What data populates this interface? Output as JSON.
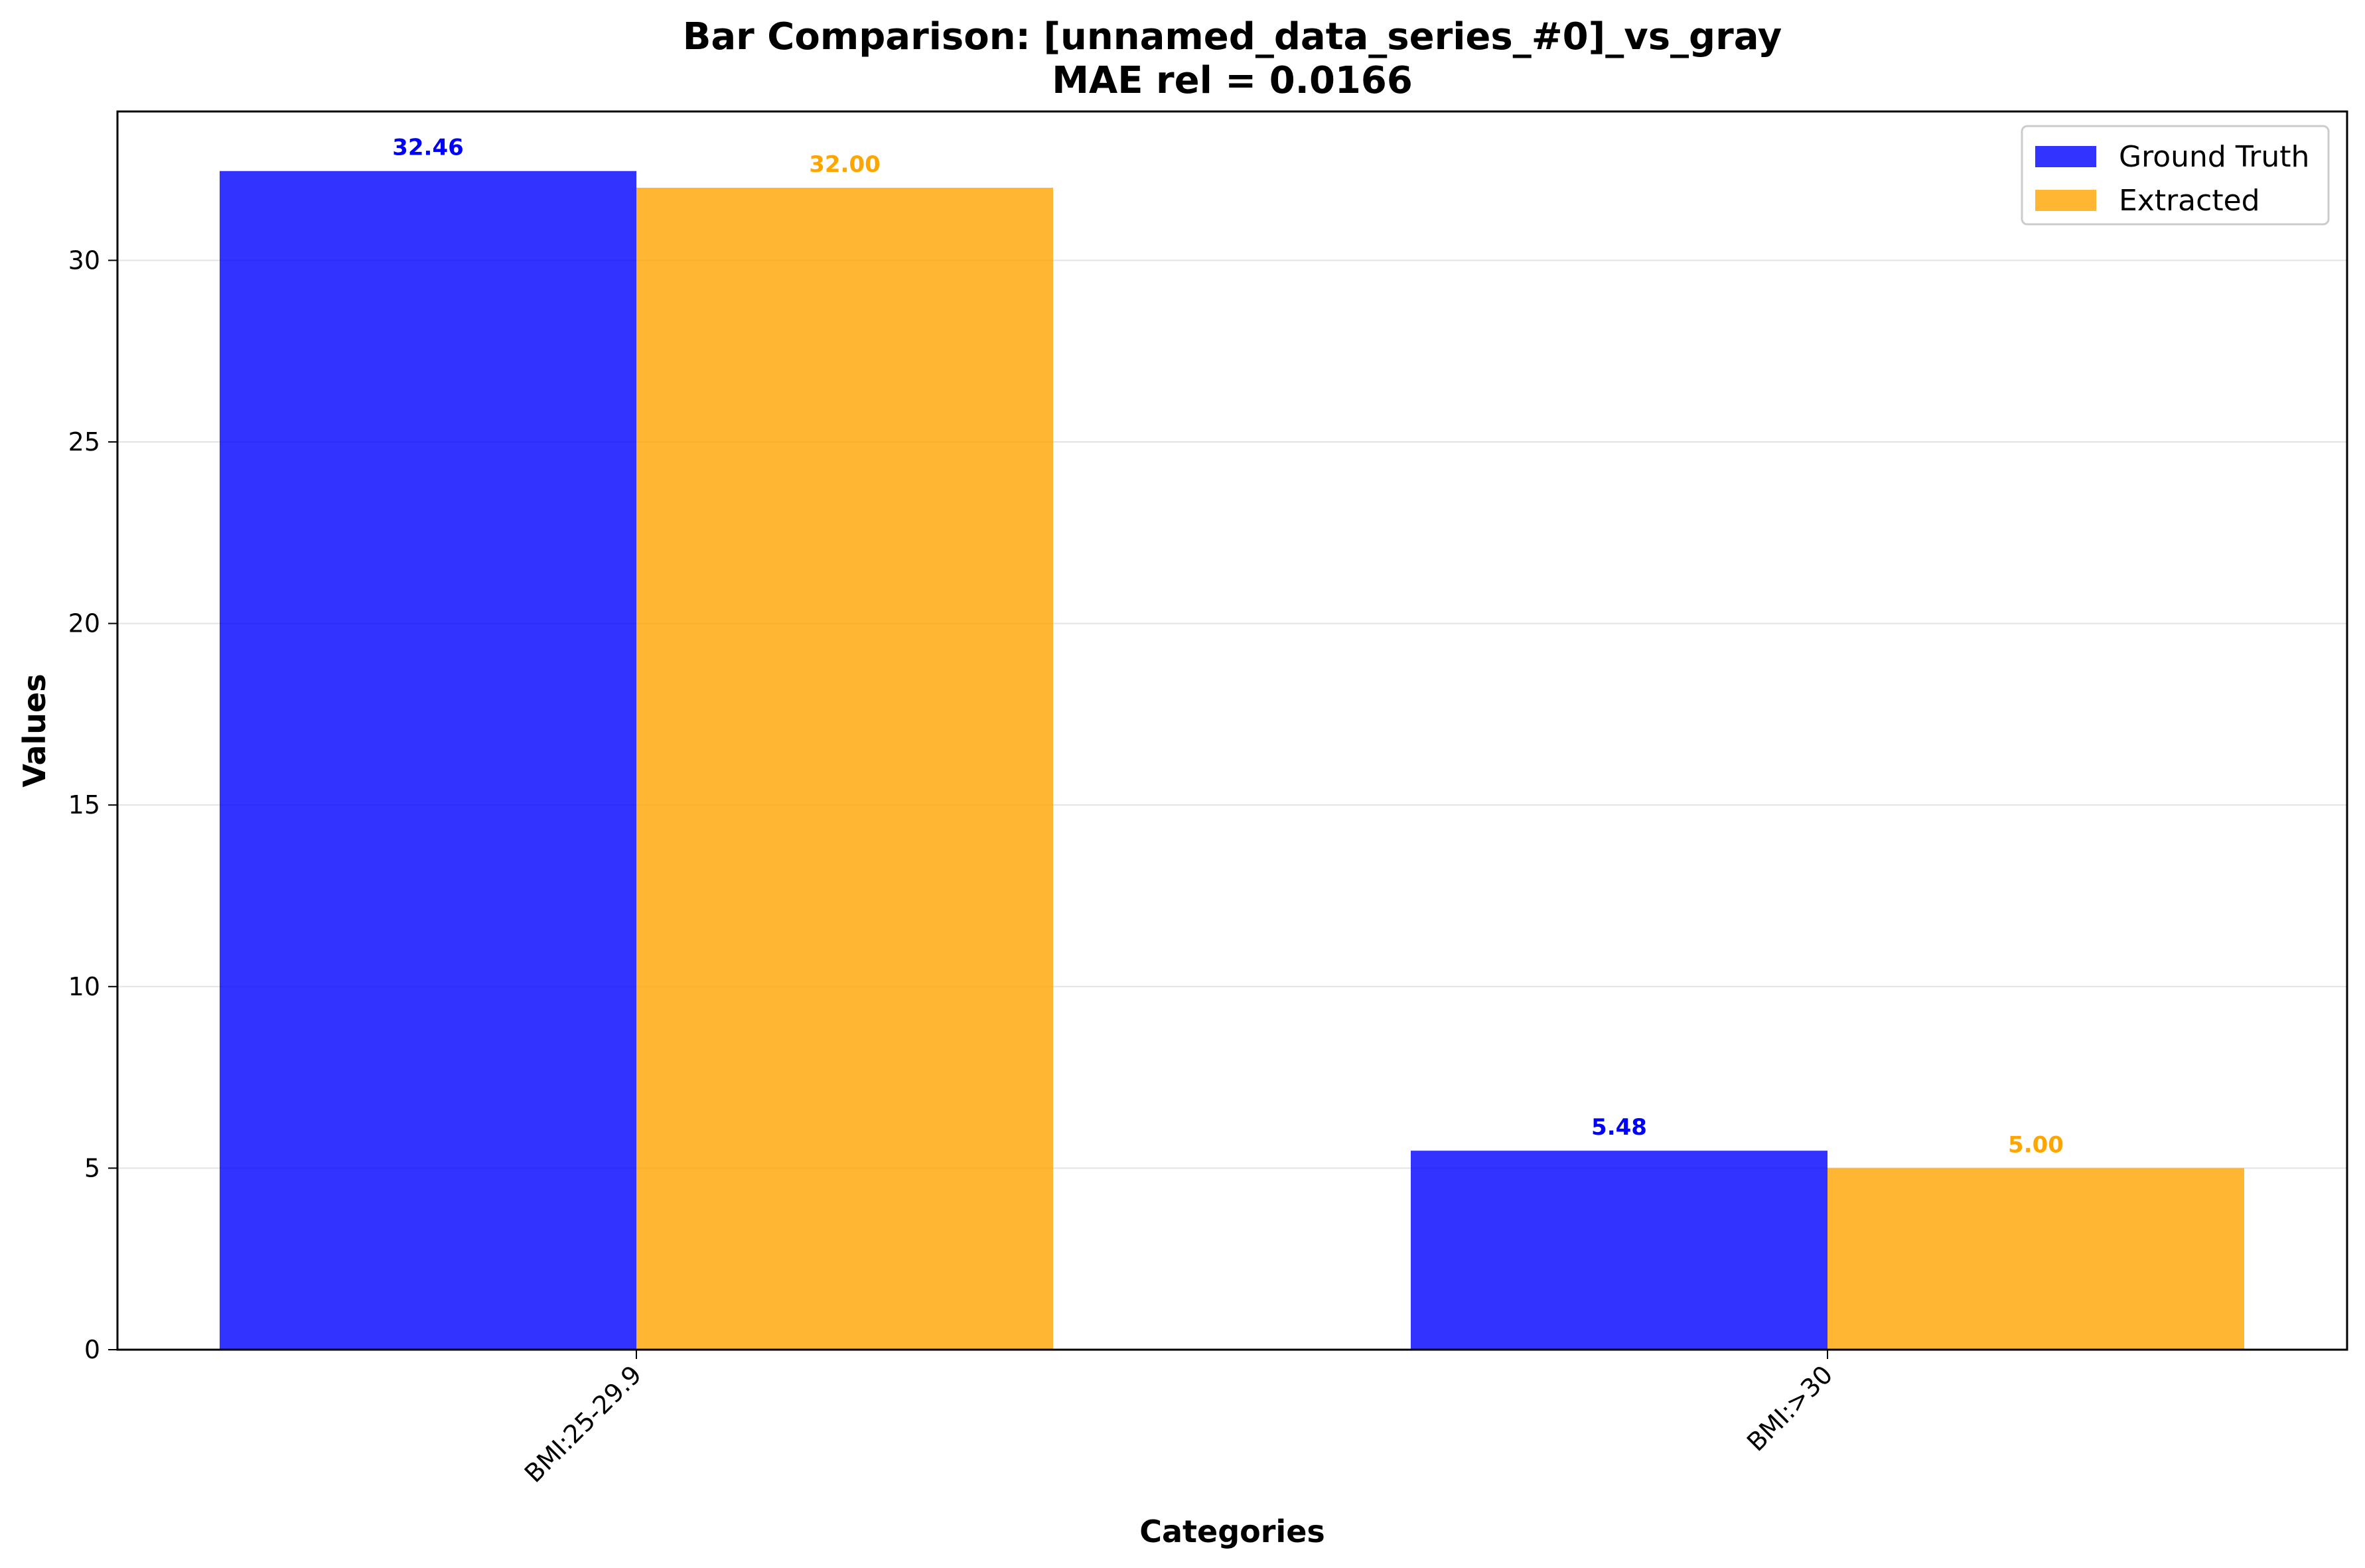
{
  "chart_data": {
    "type": "bar",
    "title": "Bar Comparison: [unnamed_data_series_#0]_vs_gray",
    "subtitle": "MAE rel = 0.0166",
    "xlabel": "Categories",
    "ylabel": "Values",
    "categories": [
      "BMI:25-29.9",
      "BMI:>30"
    ],
    "series": [
      {
        "name": "Ground Truth",
        "values": [
          32.46,
          5.48
        ],
        "labels": [
          "32.46",
          "5.48"
        ],
        "color": "#0000ff"
      },
      {
        "name": "Extracted",
        "values": [
          32.0,
          5.0
        ],
        "labels": [
          "32.00",
          "5.00"
        ],
        "color": "#ffa500"
      }
    ],
    "ylim": [
      0,
      34.1
    ],
    "yticks": [
      "0",
      "5",
      "10",
      "15",
      "20",
      "25",
      "30"
    ],
    "grid": "horizontal",
    "legend_position": "top-right"
  }
}
